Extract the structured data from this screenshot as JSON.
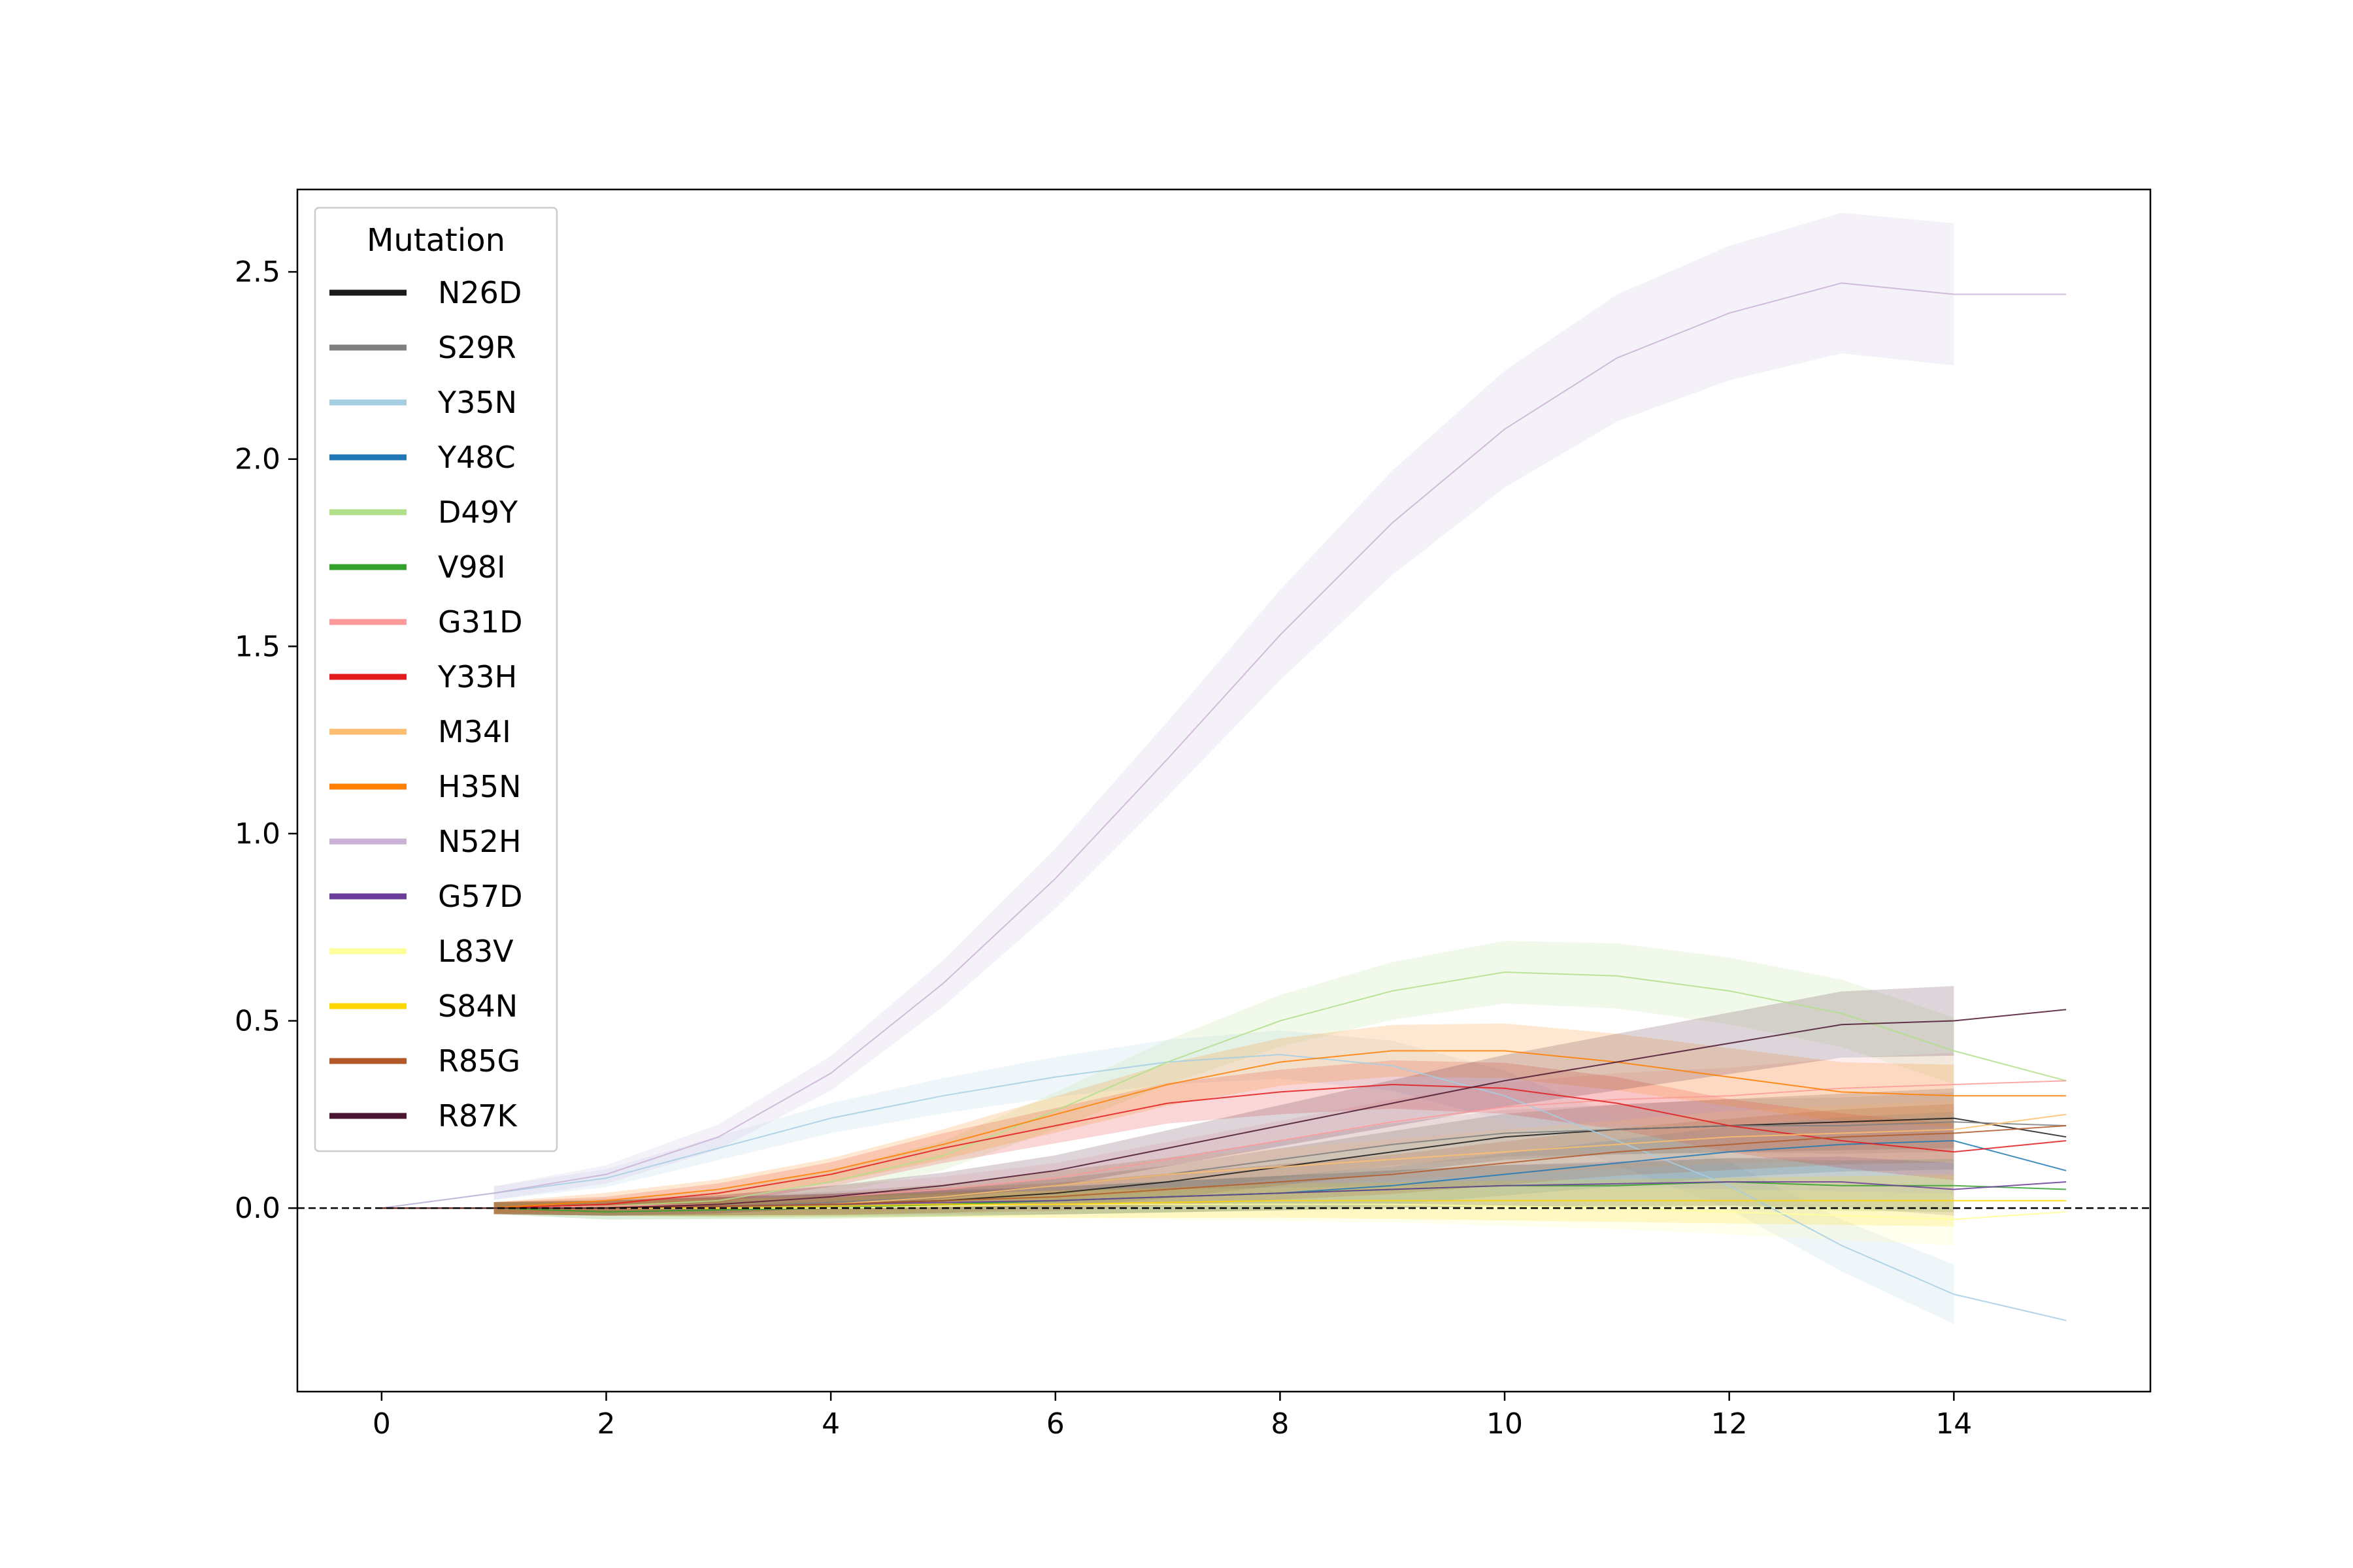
{
  "chart_data": {
    "type": "line",
    "title": "",
    "xlabel": "",
    "ylabel": "",
    "xlim": [
      -0.75,
      15.75
    ],
    "ylim": [
      -0.49,
      2.72
    ],
    "xticks": [
      0,
      2,
      4,
      6,
      8,
      10,
      12,
      14
    ],
    "yticks": [
      0.0,
      0.5,
      1.0,
      1.5,
      2.0,
      2.5
    ],
    "x_tick_labels": [
      "0",
      "2",
      "4",
      "6",
      "8",
      "10",
      "12",
      "14"
    ],
    "y_tick_labels": [
      "0.0",
      "0.5",
      "1.0",
      "1.5",
      "2.0",
      "2.5"
    ],
    "grid": false,
    "reference_line": {
      "y": 0.0,
      "style": "dashed",
      "color": "#000000"
    },
    "legend": {
      "title": "Mutation",
      "placement": "top-left"
    },
    "x": [
      0,
      1,
      2,
      3,
      4,
      5,
      6,
      7,
      8,
      9,
      10,
      11,
      12,
      13,
      14,
      15
    ],
    "series": [
      {
        "name": "N26D",
        "color": "#1a1a1a",
        "values": [
          0,
          0,
          0,
          0.005,
          0.01,
          0.02,
          0.04,
          0.07,
          0.11,
          0.15,
          0.19,
          0.21,
          0.22,
          0.23,
          0.24,
          0.19
        ]
      },
      {
        "name": "S29R",
        "color": "#7f7f7f",
        "values": [
          0,
          0,
          0,
          0.005,
          0.015,
          0.03,
          0.06,
          0.09,
          0.13,
          0.17,
          0.2,
          0.21,
          0.22,
          0.22,
          0.23,
          0.22
        ]
      },
      {
        "name": "Y35N",
        "color": "#a6cee3",
        "values": [
          0,
          0.04,
          0.08,
          0.16,
          0.24,
          0.3,
          0.35,
          0.39,
          0.41,
          0.38,
          0.3,
          0.18,
          0.06,
          -0.1,
          -0.23,
          -0.3
        ]
      },
      {
        "name": "Y48C",
        "color": "#1f78b4",
        "values": [
          0,
          0,
          0,
          0,
          0.005,
          0.01,
          0.02,
          0.03,
          0.04,
          0.06,
          0.09,
          0.12,
          0.15,
          0.17,
          0.18,
          0.1
        ]
      },
      {
        "name": "D49Y",
        "color": "#b2df8a",
        "values": [
          0,
          0,
          0.005,
          0.02,
          0.07,
          0.14,
          0.26,
          0.39,
          0.5,
          0.58,
          0.63,
          0.62,
          0.58,
          0.52,
          0.42,
          0.34
        ]
      },
      {
        "name": "V98I",
        "color": "#33a02c",
        "values": [
          0,
          0,
          -0.01,
          -0.005,
          0,
          0.01,
          0.02,
          0.03,
          0.04,
          0.05,
          0.06,
          0.06,
          0.07,
          0.06,
          0.06,
          0.05
        ]
      },
      {
        "name": "G31D",
        "color": "#fb9a99",
        "values": [
          0,
          0,
          0.005,
          0.01,
          0.03,
          0.05,
          0.08,
          0.13,
          0.18,
          0.23,
          0.27,
          0.29,
          0.3,
          0.32,
          0.33,
          0.34
        ]
      },
      {
        "name": "Y33H",
        "color": "#e31a1c",
        "values": [
          0,
          0,
          0.01,
          0.04,
          0.09,
          0.16,
          0.22,
          0.28,
          0.31,
          0.33,
          0.32,
          0.28,
          0.22,
          0.18,
          0.15,
          0.18
        ]
      },
      {
        "name": "M34I",
        "color": "#fdbf6f",
        "values": [
          0,
          0,
          0,
          0.005,
          0.01,
          0.03,
          0.06,
          0.09,
          0.11,
          0.13,
          0.15,
          0.17,
          0.19,
          0.2,
          0.21,
          0.25
        ]
      },
      {
        "name": "H35N",
        "color": "#ff7f00",
        "values": [
          0,
          0,
          0.02,
          0.05,
          0.1,
          0.17,
          0.25,
          0.33,
          0.39,
          0.42,
          0.42,
          0.39,
          0.35,
          0.31,
          0.3,
          0.3
        ]
      },
      {
        "name": "N52H",
        "color": "#cab2d6",
        "values": [
          0,
          0.04,
          0.09,
          0.19,
          0.36,
          0.6,
          0.88,
          1.2,
          1.53,
          1.83,
          2.08,
          2.27,
          2.39,
          2.47,
          2.44,
          2.44
        ]
      },
      {
        "name": "G57D",
        "color": "#6a3d9a",
        "values": [
          0,
          0,
          0,
          0.005,
          0.01,
          0.015,
          0.02,
          0.03,
          0.04,
          0.05,
          0.06,
          0.065,
          0.07,
          0.07,
          0.05,
          0.07
        ]
      },
      {
        "name": "L83V",
        "color": "#ffff99",
        "values": [
          0,
          0,
          0,
          0,
          0,
          0.005,
          0.01,
          0.01,
          0.01,
          0.01,
          0.005,
          0,
          -0.01,
          -0.02,
          -0.03,
          -0.01
        ]
      },
      {
        "name": "S84N",
        "color": "#ffd700",
        "values": [
          0,
          0,
          0,
          0,
          0.005,
          0.01,
          0.01,
          0.015,
          0.02,
          0.02,
          0.02,
          0.02,
          0.02,
          0.02,
          0.02,
          0.02
        ]
      },
      {
        "name": "R85G",
        "color": "#b15928",
        "values": [
          0,
          0,
          0,
          0.005,
          0.01,
          0.02,
          0.03,
          0.05,
          0.07,
          0.09,
          0.12,
          0.15,
          0.17,
          0.19,
          0.2,
          0.22
        ]
      },
      {
        "name": "R87K",
        "color": "#4a1530",
        "values": [
          0,
          0,
          0,
          0.01,
          0.03,
          0.06,
          0.1,
          0.16,
          0.22,
          0.28,
          0.34,
          0.39,
          0.44,
          0.49,
          0.5,
          0.53
        ]
      }
    ]
  }
}
